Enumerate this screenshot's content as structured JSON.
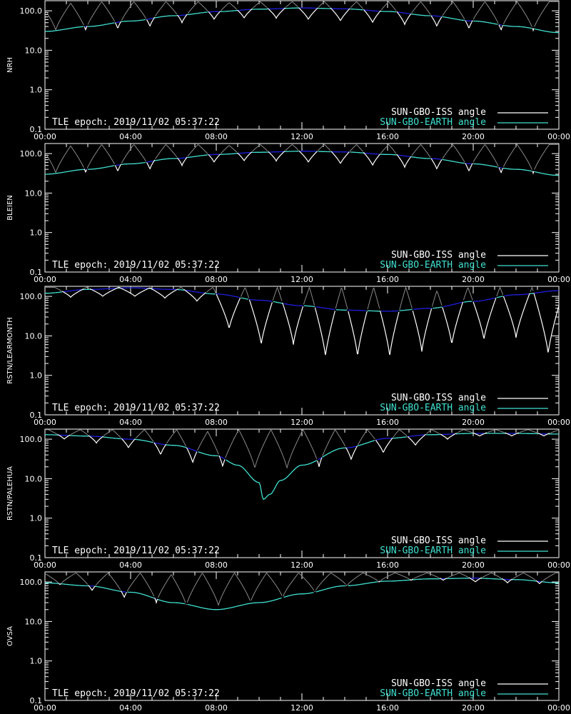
{
  "colors": {
    "background": "#000000",
    "axis": "#ffffff",
    "iss_series": "#ffffff",
    "iss_shadow": "#8a8a8a",
    "earth_visible": "#40e0d0",
    "earth_hidden": "#1f1fe0",
    "legend_iss_text": "#ffffff",
    "legend_earth_text": "#40e0d0"
  },
  "annotation": "TLE epoch: 2019/11/02 05:37:22",
  "legend": {
    "iss": "SUN-GBO-ISS angle",
    "earth": "SUN-GBO-EARTH angle",
    "placement": "bottom-right"
  },
  "chart_data": [
    {
      "type": "line",
      "ylabel": "NRH",
      "log_scale": true,
      "ylim": [
        0.1,
        180
      ],
      "xlim_hours": [
        0,
        24
      ],
      "x_tick_labels": [
        "00:00",
        "04:00",
        "08:00",
        "12:00",
        "16:00",
        "20:00",
        "00:00"
      ],
      "y_tick_labels": [
        "0.1",
        "1.0",
        "10.0",
        "100.0"
      ],
      "earth_curve": {
        "x": [
          0,
          2,
          4,
          6,
          8,
          10,
          12,
          14,
          16,
          18,
          20,
          22,
          24
        ],
        "y": [
          30,
          40,
          55,
          75,
          95,
          110,
          118,
          112,
          96,
          75,
          55,
          40,
          28
        ]
      },
      "iss_min_times": [
        0.5,
        1.9,
        3.4,
        4.9,
        6.4,
        7.9,
        9.3,
        10.8,
        12.3,
        13.8,
        15.3,
        16.8,
        18.3,
        19.8,
        21.3,
        22.8
      ],
      "iss_min_depths": [
        32,
        32,
        35,
        40,
        50,
        60,
        65,
        65,
        60,
        55,
        50,
        45,
        40,
        35,
        32,
        32
      ],
      "iss_peak": 170
    },
    {
      "type": "line",
      "ylabel": "BLEIEN",
      "log_scale": true,
      "ylim": [
        0.1,
        180
      ],
      "xlim_hours": [
        0,
        24
      ],
      "x_tick_labels": [
        "00:00",
        "04:00",
        "08:00",
        "12:00",
        "16:00",
        "20:00",
        "00:00"
      ],
      "y_tick_labels": [
        "0.1",
        "1.0",
        "10.0",
        "100.0"
      ],
      "earth_curve": {
        "x": [
          0,
          2,
          4,
          6,
          8,
          10,
          12,
          14,
          16,
          18,
          20,
          22,
          24
        ],
        "y": [
          30,
          40,
          55,
          75,
          95,
          108,
          115,
          110,
          95,
          75,
          55,
          40,
          28
        ]
      },
      "iss_min_times": [
        0.5,
        1.9,
        3.4,
        4.9,
        6.4,
        7.9,
        9.3,
        10.8,
        12.3,
        13.8,
        15.3,
        16.8,
        18.3,
        19.8,
        21.3,
        22.8
      ],
      "iss_min_depths": [
        32,
        33,
        35,
        40,
        50,
        60,
        65,
        65,
        60,
        55,
        50,
        45,
        40,
        35,
        32,
        32
      ],
      "iss_peak": 170
    },
    {
      "type": "line",
      "ylabel": "RSTN/LEARMONTH",
      "log_scale": true,
      "ylim": [
        0.1,
        180
      ],
      "xlim_hours": [
        0,
        24
      ],
      "x_tick_labels": [
        "00:00",
        "04:00",
        "08:00",
        "12:00",
        "16:00",
        "20:00",
        "00:00"
      ],
      "y_tick_labels": [
        "0.1",
        "1.0",
        "10.0",
        "100.0"
      ],
      "earth_curve": {
        "x": [
          0,
          2,
          4,
          6,
          8,
          10,
          12,
          14,
          16,
          18,
          20,
          22,
          24
        ],
        "y": [
          120,
          150,
          165,
          150,
          115,
          80,
          58,
          45,
          42,
          50,
          75,
          110,
          140
        ]
      },
      "iss_min_times": [
        1.2,
        2.7,
        4.2,
        5.6,
        7.1,
        8.6,
        10.1,
        11.6,
        13.1,
        14.6,
        16.1,
        17.6,
        19.0,
        20.5,
        22.0,
        23.5
      ],
      "iss_min_depths": [
        95,
        100,
        100,
        90,
        75,
        15,
        6,
        6,
        3,
        3,
        3,
        4,
        6,
        8,
        9,
        3.5
      ],
      "iss_peak": 170
    },
    {
      "type": "line",
      "ylabel": "RSTN/PALEHUA",
      "log_scale": true,
      "ylim": [
        0.1,
        180
      ],
      "xlim_hours": [
        0,
        24
      ],
      "x_tick_labels": [
        "00:00",
        "04:00",
        "08:00",
        "12:00",
        "16:00",
        "20:00",
        "00:00"
      ],
      "y_tick_labels": [
        "0.1",
        "1.0",
        "10.0",
        "100.0"
      ],
      "earth_curve": {
        "x": [
          0,
          2,
          4,
          6,
          8,
          9,
          10,
          10.2,
          10.5,
          11,
          12,
          14,
          16,
          18,
          20,
          22,
          24
        ],
        "y": [
          130,
          120,
          100,
          70,
          38,
          22,
          8,
          3,
          4,
          9,
          22,
          60,
          105,
          130,
          140,
          140,
          135
        ]
      },
      "iss_min_times": [
        0.9,
        2.4,
        3.9,
        5.4,
        6.9,
        8.3,
        9.8,
        11.3,
        12.8,
        14.3,
        15.8,
        17.3,
        18.8,
        20.3,
        21.8,
        23.3
      ],
      "iss_min_depths": [
        100,
        80,
        60,
        40,
        25,
        20,
        18,
        18,
        20,
        30,
        45,
        70,
        100,
        120,
        120,
        120
      ],
      "iss_peak": 175
    },
    {
      "type": "line",
      "ylabel": "OVSA",
      "log_scale": true,
      "ylim": [
        0.1,
        180
      ],
      "xlim_hours": [
        0,
        24
      ],
      "x_tick_labels": [
        "00:00",
        "04:00",
        "08:00",
        "12:00",
        "16:00",
        "20:00",
        "00:00"
      ],
      "y_tick_labels": [
        "0.1",
        "1.0",
        "10.0",
        "100.0"
      ],
      "earth_curve": {
        "x": [
          0,
          2,
          4,
          6,
          8,
          10,
          12,
          14,
          16,
          18,
          20,
          22,
          24
        ],
        "y": [
          95,
          80,
          55,
          30,
          20,
          30,
          50,
          80,
          105,
          120,
          125,
          115,
          95
        ]
      },
      "iss_min_times": [
        0.7,
        2.2,
        3.7,
        5.2,
        6.6,
        8.1,
        9.6,
        11.1,
        12.6,
        14.1,
        15.6,
        17.1,
        18.6,
        20.1,
        21.6,
        23.1
      ],
      "iss_min_depths": [
        85,
        60,
        40,
        30,
        25,
        25,
        30,
        40,
        55,
        80,
        100,
        110,
        110,
        100,
        95,
        90
      ],
      "iss_peak": 170
    }
  ]
}
